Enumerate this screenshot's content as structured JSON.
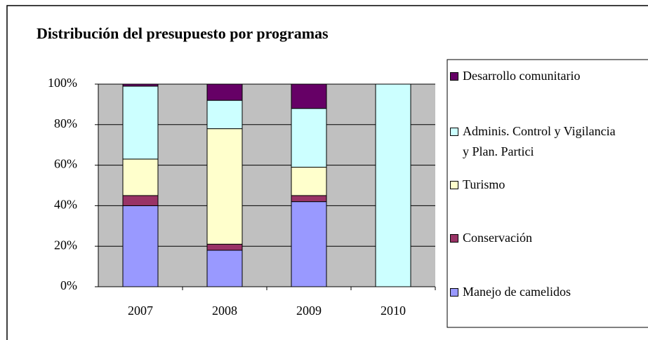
{
  "chart_data": {
    "type": "stacked_bar",
    "title": "Distribución del presupuesto por programas",
    "categories": [
      "2007",
      "2008",
      "2009",
      "2010"
    ],
    "series": [
      {
        "name": "Manejo de camelidos",
        "color": "#9999ff",
        "values": [
          40,
          18,
          42,
          0
        ]
      },
      {
        "name": "Conservación",
        "color": "#993366",
        "values": [
          5,
          3,
          3,
          0
        ]
      },
      {
        "name": "Turismo",
        "color": "#ffffcc",
        "values": [
          18,
          57,
          14,
          0
        ]
      },
      {
        "name": "Adminis. Control y Vigilancia y Plan. Partici",
        "color": "#ccffff",
        "values": [
          36,
          14,
          29,
          100
        ]
      },
      {
        "name": "Desarrollo comunitario",
        "color": "#660066",
        "values": [
          1,
          8,
          12,
          0
        ]
      }
    ],
    "ylim": [
      0,
      100
    ],
    "yticks": [
      {
        "value": 0,
        "label": "0%"
      },
      {
        "value": 20,
        "label": "20%"
      },
      {
        "value": 40,
        "label": "40%"
      },
      {
        "value": 60,
        "label": "60%"
      },
      {
        "value": 80,
        "label": "80%"
      },
      {
        "value": 100,
        "label": "100%"
      }
    ],
    "grid": true
  }
}
